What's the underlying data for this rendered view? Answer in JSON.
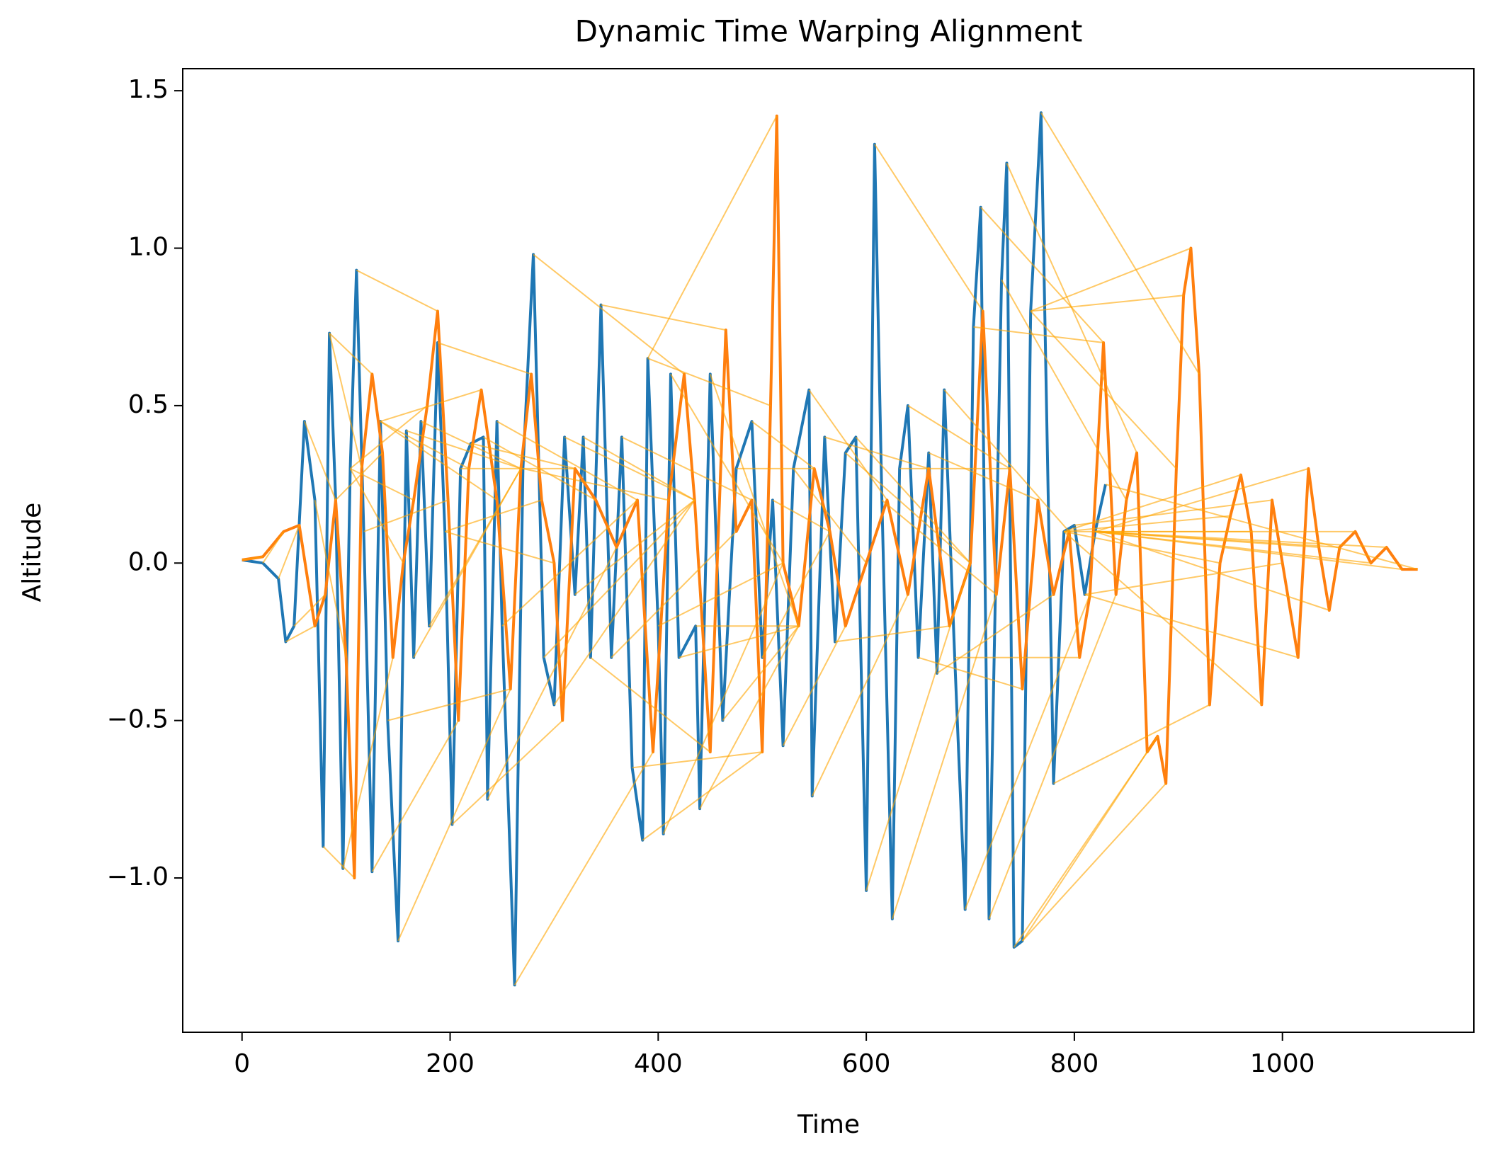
{
  "chart_data": {
    "type": "line",
    "title": "Dynamic Time Warping Alignment",
    "xlabel": "Time",
    "ylabel": "Altitude",
    "xlim": [
      -57,
      1184
    ],
    "ylim": [
      -1.49,
      1.57
    ],
    "xticks": [
      0,
      200,
      400,
      600,
      800,
      1000
    ],
    "yticks": [
      {
        "value": -1.0,
        "label": "−1.0"
      },
      {
        "value": -0.5,
        "label": "−0.5"
      },
      {
        "value": 0.0,
        "label": "0.0"
      },
      0.5,
      {
        "value": 1.0,
        "label": "1.0"
      },
      1.5
    ],
    "alignment_color": "#ffa500",
    "series": [
      {
        "color": "#1f77b4",
        "x": [
          0,
          20,
          35,
          42,
          50,
          60,
          70,
          78,
          84,
          90,
          97,
          104,
          110,
          117,
          125,
          133,
          140,
          150,
          158,
          165,
          172,
          180,
          188,
          195,
          202,
          210,
          220,
          232,
          236,
          245,
          250,
          262,
          270,
          280,
          290,
          300,
          310,
          320,
          328,
          335,
          345,
          355,
          365,
          375,
          385,
          390,
          400,
          405,
          412,
          420,
          436,
          440,
          450,
          462,
          475,
          490,
          500,
          510,
          520,
          530,
          545,
          548,
          560,
          570,
          580,
          590,
          600,
          608,
          615,
          625,
          632,
          640,
          650,
          660,
          668,
          675,
          685,
          695,
          703,
          710,
          718,
          730,
          735,
          742,
          750,
          758,
          768,
          780,
          790,
          800,
          810,
          820,
          830
        ],
        "values": [
          0.01,
          0,
          -0.05,
          -0.25,
          -0.2,
          0.45,
          0.2,
          -0.9,
          0.73,
          0.2,
          -0.97,
          0.3,
          0.93,
          0.1,
          -0.98,
          0.45,
          -0.5,
          -1.2,
          0.42,
          -0.3,
          0.45,
          -0.2,
          0.7,
          0.1,
          -0.83,
          0.3,
          0.38,
          0.4,
          -0.75,
          0.45,
          -0.2,
          -1.34,
          0.3,
          0.98,
          -0.3,
          -0.45,
          0.4,
          -0.1,
          0.4,
          -0.3,
          0.82,
          -0.3,
          0.4,
          -0.65,
          -0.88,
          0.65,
          -0.2,
          -0.86,
          0.6,
          -0.3,
          -0.2,
          -0.78,
          0.6,
          -0.5,
          0.3,
          0.45,
          -0.3,
          0.2,
          -0.58,
          0.3,
          0.55,
          -0.74,
          0.4,
          -0.25,
          0.35,
          0.4,
          -1.04,
          1.33,
          0.2,
          -1.13,
          0.3,
          0.5,
          -0.3,
          0.35,
          -0.35,
          0.55,
          -0.3,
          -1.1,
          0.75,
          1.13,
          -1.13,
          0.9,
          1.27,
          -1.22,
          -1.2,
          0.8,
          1.43,
          -0.7,
          0.1,
          0.12,
          -0.1,
          0.1,
          0.25
        ]
      },
      {
        "color": "#ff7f0e",
        "x": [
          0,
          20,
          40,
          55,
          70,
          80,
          90,
          100,
          108,
          115,
          125,
          135,
          145,
          155,
          165,
          178,
          188,
          198,
          208,
          218,
          230,
          245,
          258,
          268,
          278,
          288,
          300,
          308,
          320,
          340,
          360,
          380,
          395,
          410,
          425,
          435,
          450,
          465,
          475,
          490,
          500,
          508,
          514,
          520,
          535,
          550,
          565,
          580,
          600,
          620,
          640,
          660,
          680,
          700,
          712,
          725,
          738,
          750,
          765,
          780,
          795,
          805,
          815,
          828,
          840,
          850,
          860,
          870,
          880,
          888,
          898,
          905,
          912,
          920,
          930,
          940,
          950,
          960,
          970,
          980,
          990,
          1000,
          1015,
          1025,
          1035,
          1045,
          1055,
          1070,
          1085,
          1100,
          1115,
          1130
        ],
        "values": [
          0.01,
          0.02,
          0.1,
          0.12,
          -0.2,
          -0.1,
          0.2,
          -0.3,
          -1.0,
          0.3,
          0.6,
          0.35,
          -0.3,
          0.0,
          0.2,
          0.5,
          0.8,
          0.2,
          -0.5,
          0.3,
          0.55,
          0.2,
          -0.4,
          0.3,
          0.6,
          0.2,
          0.0,
          -0.5,
          0.3,
          0.2,
          0.05,
          0.2,
          -0.6,
          0.2,
          0.6,
          0.2,
          -0.6,
          0.74,
          0.1,
          0.2,
          -0.6,
          0.5,
          1.42,
          0.0,
          -0.2,
          0.3,
          0.1,
          -0.2,
          0.0,
          0.2,
          -0.1,
          0.3,
          -0.2,
          0.0,
          0.8,
          -0.1,
          0.3,
          -0.4,
          0.2,
          -0.1,
          0.1,
          -0.3,
          -0.1,
          0.7,
          -0.1,
          0.2,
          0.35,
          -0.6,
          -0.55,
          -0.7,
          0.3,
          0.85,
          1.0,
          0.6,
          -0.45,
          0.0,
          0.15,
          0.28,
          0.1,
          -0.45,
          0.2,
          0.0,
          -0.3,
          0.3,
          0.05,
          -0.15,
          0.05,
          0.1,
          0.0,
          0.05,
          -0.02,
          -0.02
        ]
      }
    ]
  }
}
